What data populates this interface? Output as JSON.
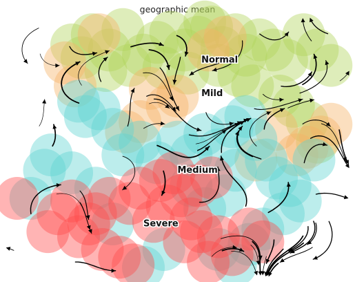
{
  "chart_data": {
    "type": "scatter",
    "title": "geographic mean",
    "xlabel": "",
    "ylabel": "",
    "xlim": [
      0,
      100
    ],
    "ylim": [
      0,
      100
    ],
    "axes_visible": false,
    "grid": false,
    "legend": "none",
    "overlay": "velocity-streamlines",
    "series": [
      {
        "name": "Normal",
        "color": "#b0d45a",
        "label_pos": [
          57,
          84
        ],
        "points": [
          [
            19,
            90
          ],
          [
            25,
            94
          ],
          [
            30,
            88
          ],
          [
            34,
            96
          ],
          [
            40,
            86
          ],
          [
            44,
            91
          ],
          [
            48,
            95
          ],
          [
            52,
            88
          ],
          [
            56,
            93
          ],
          [
            60,
            97
          ],
          [
            63,
            89
          ],
          [
            67,
            94
          ],
          [
            70,
            86
          ],
          [
            74,
            92
          ],
          [
            78,
            88
          ],
          [
            82,
            84
          ],
          [
            87,
            94
          ],
          [
            91,
            88
          ],
          [
            95,
            82
          ],
          [
            29,
            80
          ],
          [
            36,
            82
          ],
          [
            46,
            81
          ],
          [
            53,
            79
          ],
          [
            62,
            82
          ],
          [
            68,
            78
          ],
          [
            72,
            74
          ],
          [
            80,
            70
          ],
          [
            84,
            66
          ],
          [
            88,
            60
          ],
          [
            91,
            52
          ],
          [
            58,
            99
          ],
          [
            22,
            85
          ]
        ]
      },
      {
        "name": "Mild",
        "color": "#f5b266",
        "label_pos": [
          57,
          71
        ],
        "points": [
          [
            17,
            83
          ],
          [
            20,
            74
          ],
          [
            27,
            94
          ],
          [
            42,
            73
          ],
          [
            47,
            66
          ],
          [
            35,
            56
          ],
          [
            39,
            60
          ],
          [
            50,
            70
          ],
          [
            59,
            88
          ],
          [
            64,
            93
          ],
          [
            79,
            57
          ],
          [
            85,
            47
          ],
          [
            92,
            54
          ],
          [
            95,
            59
          ],
          [
            88,
            50
          ],
          [
            73,
            45
          ]
        ]
      },
      {
        "name": "Medium",
        "color": "#5fd5d1",
        "label_pos": [
          50,
          41
        ],
        "points": [
          [
            21,
            68
          ],
          [
            23,
            62
          ],
          [
            27,
            65
          ],
          [
            31,
            57
          ],
          [
            34,
            47
          ],
          [
            39,
            52
          ],
          [
            44,
            44
          ],
          [
            50,
            52
          ],
          [
            54,
            47
          ],
          [
            58,
            55
          ],
          [
            62,
            49
          ],
          [
            66,
            58
          ],
          [
            70,
            62
          ],
          [
            73,
            53
          ],
          [
            76,
            45
          ],
          [
            79,
            38
          ],
          [
            83,
            35
          ],
          [
            86,
            29
          ],
          [
            81,
            24
          ],
          [
            75,
            18
          ],
          [
            71,
            12
          ],
          [
            67,
            4
          ],
          [
            62,
            10
          ],
          [
            58,
            26
          ],
          [
            54,
            35
          ],
          [
            46,
            10
          ],
          [
            40,
            3
          ],
          [
            31,
            20
          ],
          [
            26,
            34
          ],
          [
            19,
            40
          ],
          [
            11,
            41
          ],
          [
            7,
            30
          ],
          [
            13,
            47
          ],
          [
            67,
            41
          ],
          [
            64,
            31
          ],
          [
            90,
            45
          ]
        ]
      },
      {
        "name": "Severe",
        "color": "#ff4d4d",
        "label_pos": [
          40,
          20
        ],
        "points": [
          [
            3,
            30
          ],
          [
            15,
            24
          ],
          [
            19,
            29
          ],
          [
            24,
            20
          ],
          [
            21,
            15
          ],
          [
            28,
            10
          ],
          [
            33,
            7
          ],
          [
            37,
            4
          ],
          [
            43,
            21
          ],
          [
            47,
            27
          ],
          [
            51,
            31
          ],
          [
            54,
            22
          ],
          [
            57,
            17
          ],
          [
            59,
            5
          ],
          [
            62,
            15
          ],
          [
            66,
            8
          ],
          [
            71,
            18
          ],
          [
            75,
            13
          ],
          [
            39,
            34
          ],
          [
            45,
            37
          ],
          [
            49,
            40
          ],
          [
            36,
            28
          ],
          [
            30,
            30
          ],
          [
            26,
            24
          ],
          [
            52,
            13
          ],
          [
            12,
            17
          ],
          [
            56,
            35
          ],
          [
            60,
            38
          ]
        ]
      }
    ]
  }
}
